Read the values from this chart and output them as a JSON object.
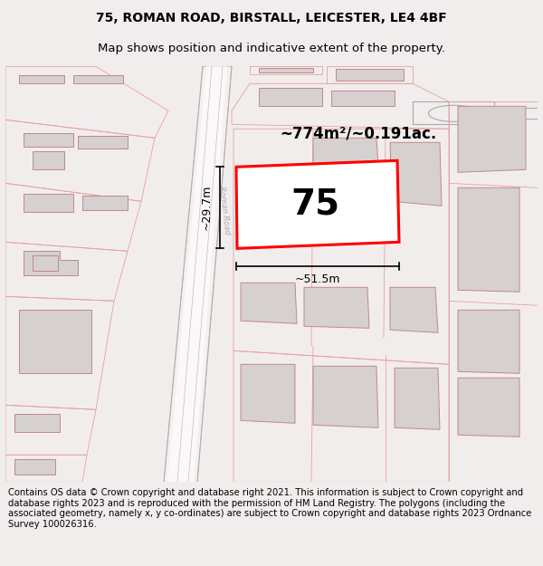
{
  "title_line1": "75, ROMAN ROAD, BIRSTALL, LEICESTER, LE4 4BF",
  "title_line2": "Map shows position and indicative extent of the property.",
  "footer_text": "Contains OS data © Crown copyright and database right 2021. This information is subject to Crown copyright and database rights 2023 and is reproduced with the permission of HM Land Registry. The polygons (including the associated geometry, namely x, y co-ordinates) are subject to Crown copyright and database rights 2023 Ordnance Survey 100026316.",
  "bg_color": "#f2eded",
  "map_bg": "#ffffff",
  "building_fill": "#d6d0d0",
  "building_edge": "#c08888",
  "plot_edge": "#e8a0a0",
  "highlight_edge": "#ff0000",
  "highlight_fill": "#ffffff",
  "area_text": "~774m²/~0.191ac.",
  "label_75": "75",
  "dim_width": "~51.5m",
  "dim_height": "~29.7m",
  "road_label": "Roman Road",
  "title_fontsize": 10,
  "subtitle_fontsize": 9.5,
  "footer_fontsize": 7.2,
  "road_gray1": "#cccccc",
  "road_gray2": "#e8e8e8"
}
